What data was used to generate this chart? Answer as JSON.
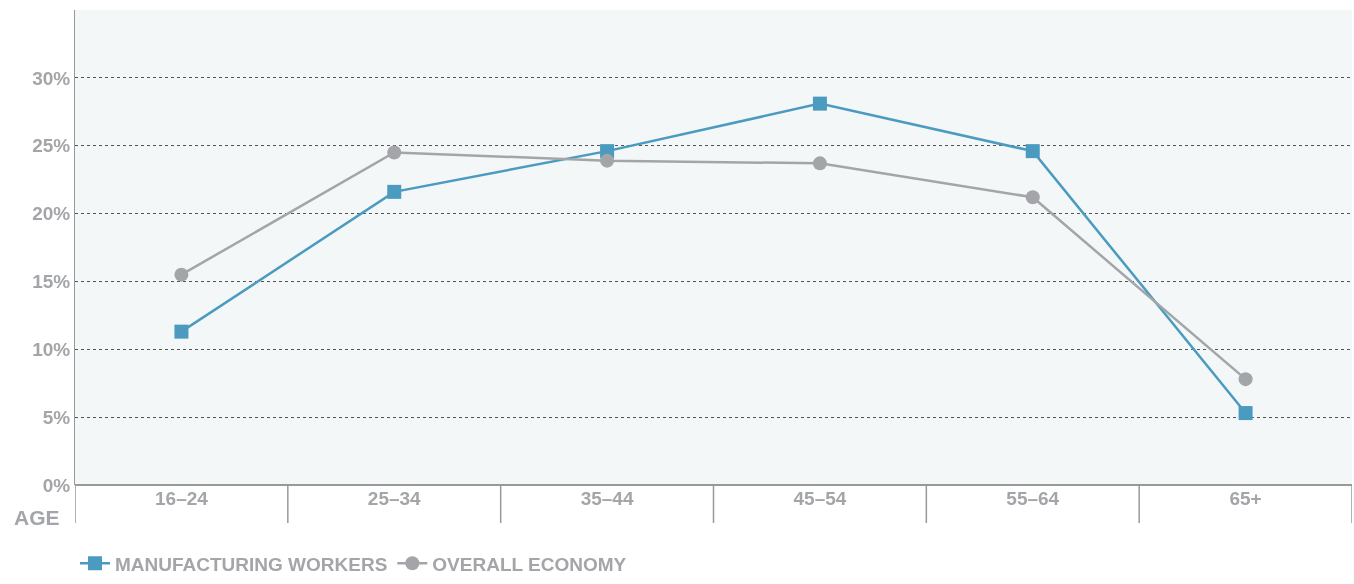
{
  "chart_data": {
    "type": "line",
    "xlabel": "AGE",
    "categories": [
      "16–24",
      "25–34",
      "35–44",
      "45–54",
      "55–64",
      "65+"
    ],
    "series": [
      {
        "name": "MANUFACTURING WORKERS",
        "color": "#4a9bbf",
        "marker": "square",
        "values": [
          11.3,
          21.6,
          24.6,
          28.1,
          24.6,
          5.3
        ]
      },
      {
        "name": "OVERALL ECONOMY",
        "color": "#a3a5a8",
        "marker": "circle",
        "values": [
          15.5,
          24.5,
          23.9,
          23.7,
          21.2,
          7.8
        ]
      }
    ],
    "ylim": [
      0,
      35
    ],
    "yticks": [
      {
        "value": 0,
        "label": "0%"
      },
      {
        "value": 5,
        "label": "5%"
      },
      {
        "value": 10,
        "label": "10%"
      },
      {
        "value": 15,
        "label": "15%"
      },
      {
        "value": 20,
        "label": "20%"
      },
      {
        "value": 25,
        "label": "25%"
      },
      {
        "value": 30,
        "label": "30%"
      }
    ],
    "grid": "y",
    "legend": "bottom left",
    "line_style": "solid"
  }
}
